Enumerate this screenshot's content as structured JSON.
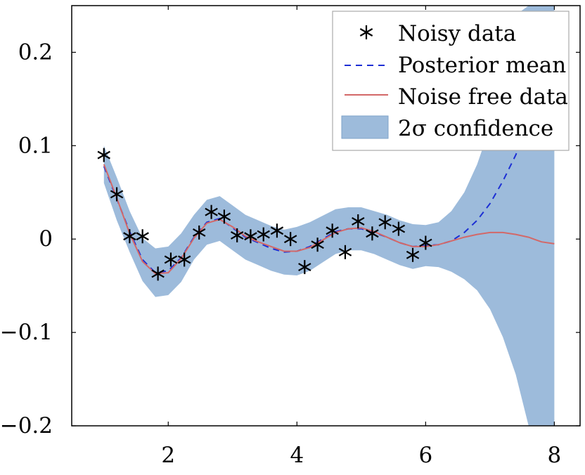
{
  "chart_data": {
    "type": "line",
    "title": "",
    "xlabel": "",
    "ylabel": "",
    "xlim": [
      0.5,
      8.4
    ],
    "ylim": [
      -0.2,
      0.25
    ],
    "grid": false,
    "legend_position": "top-right",
    "x_ticks": [
      2,
      4,
      6,
      8
    ],
    "x_tick_labels": [
      "2",
      "4",
      "6",
      "8"
    ],
    "y_ticks": [
      -0.2,
      -0.1,
      0,
      0.1,
      0.2
    ],
    "y_tick_labels": [
      "−0.2",
      "−0.1",
      "0",
      "0.1",
      "0.2"
    ],
    "legend": [
      {
        "label": "Noisy data",
        "symbol": "star"
      },
      {
        "label": "Posterior mean",
        "symbol": "dashed-line"
      },
      {
        "label": "Noise free data",
        "symbol": "solid-line"
      },
      {
        "label": "2σ confidence",
        "symbol": "area"
      }
    ],
    "series": [
      {
        "name": "Noisy data",
        "kind": "scatter",
        "x": [
          1.0,
          1.2,
          1.4,
          1.6,
          1.84,
          2.04,
          2.25,
          2.48,
          2.67,
          2.87,
          3.07,
          3.28,
          3.48,
          3.69,
          3.9,
          4.12,
          4.32,
          4.55,
          4.75,
          4.95,
          5.17,
          5.37,
          5.58,
          5.8,
          6.0
        ],
        "y": [
          0.09,
          0.048,
          0.003,
          0.003,
          -0.037,
          -0.022,
          -0.022,
          0.007,
          0.029,
          0.024,
          0.004,
          0.003,
          0.005,
          0.009,
          0.0,
          -0.03,
          -0.006,
          0.009,
          -0.014,
          0.019,
          0.006,
          0.018,
          0.011,
          -0.017,
          -0.004
        ]
      },
      {
        "name": "Posterior mean",
        "kind": "line",
        "style": "dashed",
        "color": "#1c2fd4",
        "x": [
          1.0,
          1.2,
          1.4,
          1.6,
          1.8,
          2.0,
          2.2,
          2.4,
          2.6,
          2.8,
          3.0,
          3.2,
          3.4,
          3.6,
          3.8,
          4.0,
          4.2,
          4.4,
          4.6,
          4.8,
          5.0,
          5.2,
          5.4,
          5.6,
          5.8,
          6.0,
          6.2,
          6.4,
          6.6,
          6.8,
          7.0,
          7.2,
          7.4,
          7.6,
          7.8,
          8.0
        ],
        "y": [
          0.078,
          0.043,
          0.008,
          -0.022,
          -0.036,
          -0.034,
          -0.02,
          0.002,
          0.018,
          0.022,
          0.012,
          0.002,
          -0.004,
          -0.01,
          -0.014,
          -0.013,
          -0.008,
          0.0,
          0.008,
          0.011,
          0.011,
          0.007,
          0.002,
          -0.004,
          -0.008,
          -0.007,
          -0.006,
          -0.002,
          0.007,
          0.02,
          0.038,
          0.062,
          0.09,
          0.124,
          0.162,
          0.205
        ]
      },
      {
        "name": "Noise free data",
        "kind": "line",
        "style": "solid",
        "color": "#d36868",
        "x": [
          1.0,
          1.2,
          1.4,
          1.6,
          1.8,
          2.0,
          2.2,
          2.4,
          2.6,
          2.8,
          3.0,
          3.2,
          3.4,
          3.6,
          3.8,
          4.0,
          4.2,
          4.4,
          4.6,
          4.8,
          5.0,
          5.2,
          5.4,
          5.6,
          5.8,
          6.0,
          6.2,
          6.4,
          6.6,
          6.8,
          7.0,
          7.2,
          7.4,
          7.6,
          7.8,
          8.0
        ],
        "y": [
          0.08,
          0.044,
          0.006,
          -0.024,
          -0.037,
          -0.036,
          -0.021,
          0.001,
          0.017,
          0.021,
          0.013,
          0.003,
          -0.003,
          -0.008,
          -0.013,
          -0.013,
          -0.009,
          -0.001,
          0.007,
          0.011,
          0.012,
          0.008,
          0.002,
          -0.004,
          -0.008,
          -0.008,
          -0.006,
          -0.002,
          0.002,
          0.005,
          0.007,
          0.007,
          0.005,
          0.002,
          -0.003,
          -0.005
        ]
      },
      {
        "name": "2σ confidence",
        "kind": "area",
        "color": "#9dbbdb",
        "x": [
          1.0,
          1.2,
          1.4,
          1.6,
          1.8,
          2.0,
          2.2,
          2.4,
          2.6,
          2.8,
          3.0,
          3.2,
          3.4,
          3.6,
          3.8,
          4.0,
          4.2,
          4.4,
          4.6,
          4.8,
          5.0,
          5.2,
          5.4,
          5.6,
          5.8,
          6.0,
          6.2,
          6.4,
          6.6,
          6.8,
          7.0,
          7.2,
          7.4,
          7.6,
          7.8,
          8.0
        ],
        "lower": [
          0.06,
          0.02,
          -0.014,
          -0.045,
          -0.062,
          -0.06,
          -0.046,
          -0.022,
          -0.006,
          -0.002,
          -0.012,
          -0.022,
          -0.028,
          -0.034,
          -0.038,
          -0.039,
          -0.034,
          -0.025,
          -0.016,
          -0.012,
          -0.012,
          -0.016,
          -0.022,
          -0.028,
          -0.032,
          -0.029,
          -0.03,
          -0.035,
          -0.043,
          -0.055,
          -0.075,
          -0.105,
          -0.145,
          -0.2,
          -0.2,
          -0.2
        ],
        "upper": [
          0.1,
          0.066,
          0.03,
          0.001,
          -0.01,
          -0.008,
          0.006,
          0.026,
          0.042,
          0.046,
          0.036,
          0.026,
          0.02,
          0.014,
          0.01,
          0.013,
          0.018,
          0.025,
          0.032,
          0.034,
          0.034,
          0.03,
          0.026,
          0.02,
          0.016,
          0.015,
          0.018,
          0.03,
          0.05,
          0.08,
          0.12,
          0.17,
          0.24,
          0.25,
          0.25,
          0.25
        ]
      }
    ]
  }
}
